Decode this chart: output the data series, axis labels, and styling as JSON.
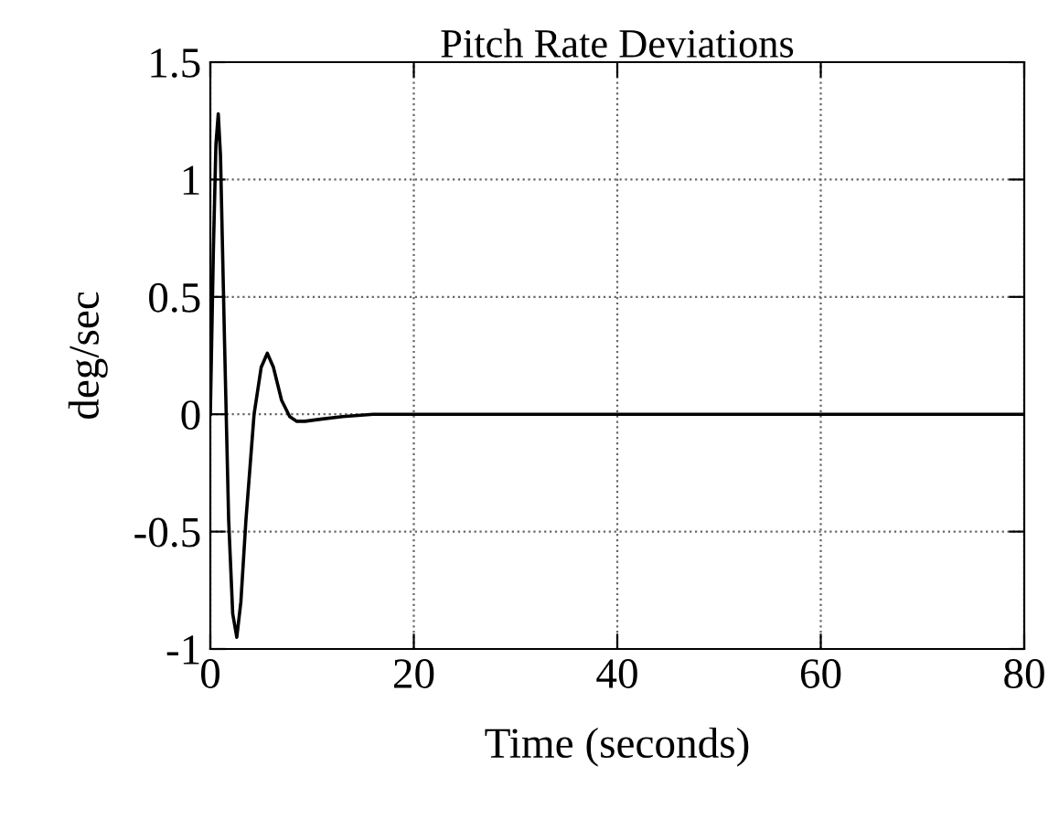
{
  "chart_data": {
    "type": "line",
    "title": "Pitch Rate Deviations",
    "xlabel": "Time (seconds)",
    "ylabel": "deg/sec",
    "x": [
      0,
      0.3,
      0.55,
      0.78,
      1.0,
      1.4,
      1.8,
      2.2,
      2.6,
      3.0,
      3.5,
      4.3,
      5.0,
      5.6,
      6.2,
      7.0,
      7.8,
      8.5,
      9.3,
      11,
      13,
      16,
      20,
      40,
      60,
      80
    ],
    "series": [
      {
        "color": "#000000",
        "values": [
          0,
          0.7,
          1.15,
          1.28,
          1.1,
          0.3,
          -0.45,
          -0.85,
          -0.95,
          -0.8,
          -0.45,
          0,
          0.2,
          0.26,
          0.2,
          0.06,
          -0.01,
          -0.03,
          -0.03,
          -0.02,
          -0.01,
          0,
          0,
          0,
          0,
          0
        ]
      }
    ],
    "xlim": [
      0,
      80
    ],
    "ylim": [
      -1,
      1.5
    ],
    "xticks": [
      0,
      20,
      40,
      60,
      80
    ],
    "yticks": [
      -1,
      -0.5,
      0,
      0.5,
      1,
      1.5
    ],
    "grid": true,
    "line_style": "solid"
  }
}
